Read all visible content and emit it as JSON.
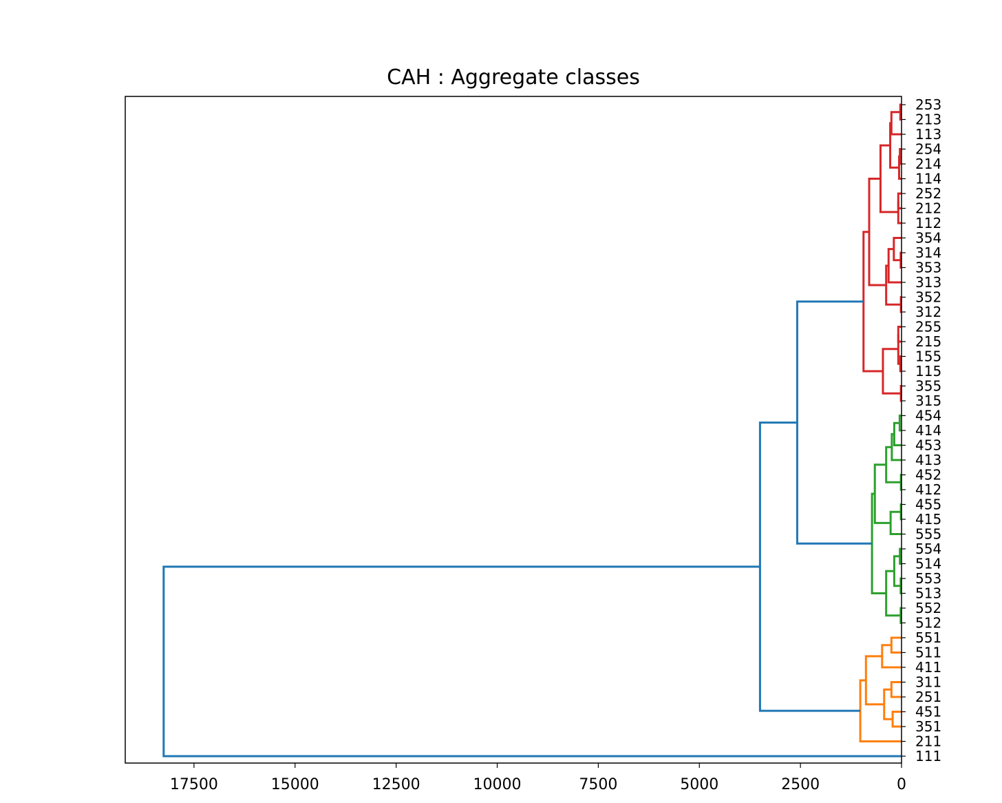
{
  "chart_data": {
    "type": "dendrogram",
    "title": "CAH : Aggregate classes",
    "orientation": "left",
    "xlim": [
      19200,
      0
    ],
    "xticks": [
      17500,
      15000,
      12500,
      10000,
      7500,
      5000,
      2500,
      0
    ],
    "leaves": [
      "253",
      "213",
      "113",
      "254",
      "214",
      "114",
      "252",
      "212",
      "112",
      "354",
      "314",
      "353",
      "313",
      "352",
      "312",
      "255",
      "215",
      "155",
      "115",
      "355",
      "315",
      "454",
      "414",
      "453",
      "413",
      "452",
      "412",
      "455",
      "415",
      "555",
      "554",
      "514",
      "553",
      "513",
      "552",
      "512",
      "551",
      "511",
      "411",
      "311",
      "251",
      "451",
      "351",
      "211",
      "111"
    ],
    "merges": [
      {
        "a": "253",
        "b": "213",
        "height": 30,
        "color": "#d62728"
      },
      {
        "a": "254",
        "b": "214",
        "height": 40,
        "color": "#d62728"
      },
      {
        "a": "252",
        "b": "212",
        "height": 80,
        "color": "#d62728"
      },
      {
        "a": "314",
        "b": "353",
        "height": 20,
        "color": "#d62728"
      },
      {
        "a": "352",
        "b": "312",
        "height": 15,
        "color": "#d62728"
      },
      {
        "a": "255",
        "b": "215",
        "height": 80,
        "color": "#d62728"
      },
      {
        "a": "155",
        "b": "115",
        "height": 30,
        "color": "#d62728"
      },
      {
        "a": "355",
        "b": "315",
        "height": 15,
        "color": "#d62728"
      },
      {
        "a": "454",
        "b": "414",
        "height": 45,
        "color": "#2ca02c"
      },
      {
        "a": "452",
        "b": "412",
        "height": 15,
        "color": "#2ca02c"
      },
      {
        "a": "455",
        "b": "415",
        "height": 15,
        "color": "#2ca02c"
      },
      {
        "a": "554",
        "b": "514",
        "height": 40,
        "color": "#2ca02c"
      },
      {
        "a": "553",
        "b": "513",
        "height": 20,
        "color": "#2ca02c"
      },
      {
        "a": "552",
        "b": "512",
        "height": 20,
        "color": "#2ca02c"
      },
      {
        "a": "551",
        "b": "511",
        "height": 250,
        "color": "#ff7f0e"
      },
      {
        "a": "311",
        "b": "251",
        "height": 250,
        "color": "#ff7f0e"
      },
      {
        "a": "451",
        "b": "351",
        "height": 220,
        "color": "#ff7f0e"
      },
      {
        "a": "253+213",
        "b": "113",
        "height": 250,
        "color": "#d62728"
      },
      {
        "a": "254+214",
        "b": "114",
        "height": 60,
        "color": "#d62728"
      },
      {
        "a": "(253+213)+113",
        "b": "(254+214)+114",
        "height": 280,
        "color": "#d62728"
      },
      {
        "a": "252+212",
        "b": "112",
        "height": 80,
        "color": "#d62728"
      },
      {
        "a": "((253+213)+113)+((254+214)+114)",
        "b": "(252+212)+112",
        "height": 520,
        "color": "#d62728"
      },
      {
        "a": "354",
        "b": "314+353",
        "height": 190,
        "color": "#d62728"
      },
      {
        "a": "354+(314+353)",
        "b": "313",
        "height": 320,
        "color": "#d62728"
      },
      {
        "a": "(354+(314+353))+313",
        "b": "352+312",
        "height": 380,
        "color": "#d62728"
      },
      {
        "a": "red-1",
        "b": "red-2",
        "height": 800,
        "color": "#d62728"
      },
      {
        "a": "255+215",
        "b": "155+115",
        "height": 80,
        "color": "#d62728"
      },
      {
        "a": "(255+215)+(155+115)",
        "b": "355+315",
        "height": 460,
        "color": "#d62728"
      },
      {
        "a": "red-12",
        "b": "red-3",
        "height": 940,
        "color": "#d62728"
      },
      {
        "a": "454+414",
        "b": "453",
        "height": 180,
        "color": "#2ca02c"
      },
      {
        "a": "(454+414)+453",
        "b": "413",
        "height": 240,
        "color": "#2ca02c"
      },
      {
        "a": "((454+414)+453)+413",
        "b": "452+412",
        "height": 380,
        "color": "#2ca02c"
      },
      {
        "a": "455+415",
        "b": "555",
        "height": 270,
        "color": "#2ca02c"
      },
      {
        "a": "green-1",
        "b": "green-2",
        "height": 660,
        "color": "#2ca02c"
      },
      {
        "a": "554+514",
        "b": "553+513",
        "height": 180,
        "color": "#2ca02c"
      },
      {
        "a": "(554+514)+(553+513)",
        "b": "552+512",
        "height": 380,
        "color": "#2ca02c"
      },
      {
        "a": "green-12",
        "b": "green-3",
        "height": 730,
        "color": "#2ca02c"
      },
      {
        "a": "551+511",
        "b": "411",
        "height": 480,
        "color": "#ff7f0e"
      },
      {
        "a": "311+251",
        "b": "451+351",
        "height": 430,
        "color": "#ff7f0e"
      },
      {
        "a": "orange-1",
        "b": "orange-2",
        "height": 880,
        "color": "#ff7f0e"
      },
      {
        "a": "orange-12",
        "b": "211",
        "height": 1020,
        "color": "#ff7f0e"
      },
      {
        "a": "red",
        "b": "green",
        "height": 2580,
        "color": "#1f77b4"
      },
      {
        "a": "red+green",
        "b": "orange",
        "height": 3500,
        "color": "#1f77b4"
      },
      {
        "a": "(red+green)+orange",
        "b": "111",
        "height": 18250,
        "color": "#1f77b4"
      }
    ],
    "colors": {
      "red": "#d62728",
      "green": "#2ca02c",
      "orange": "#ff7f0e",
      "blue": "#1f77b4"
    },
    "grid": false,
    "legend": "none"
  }
}
